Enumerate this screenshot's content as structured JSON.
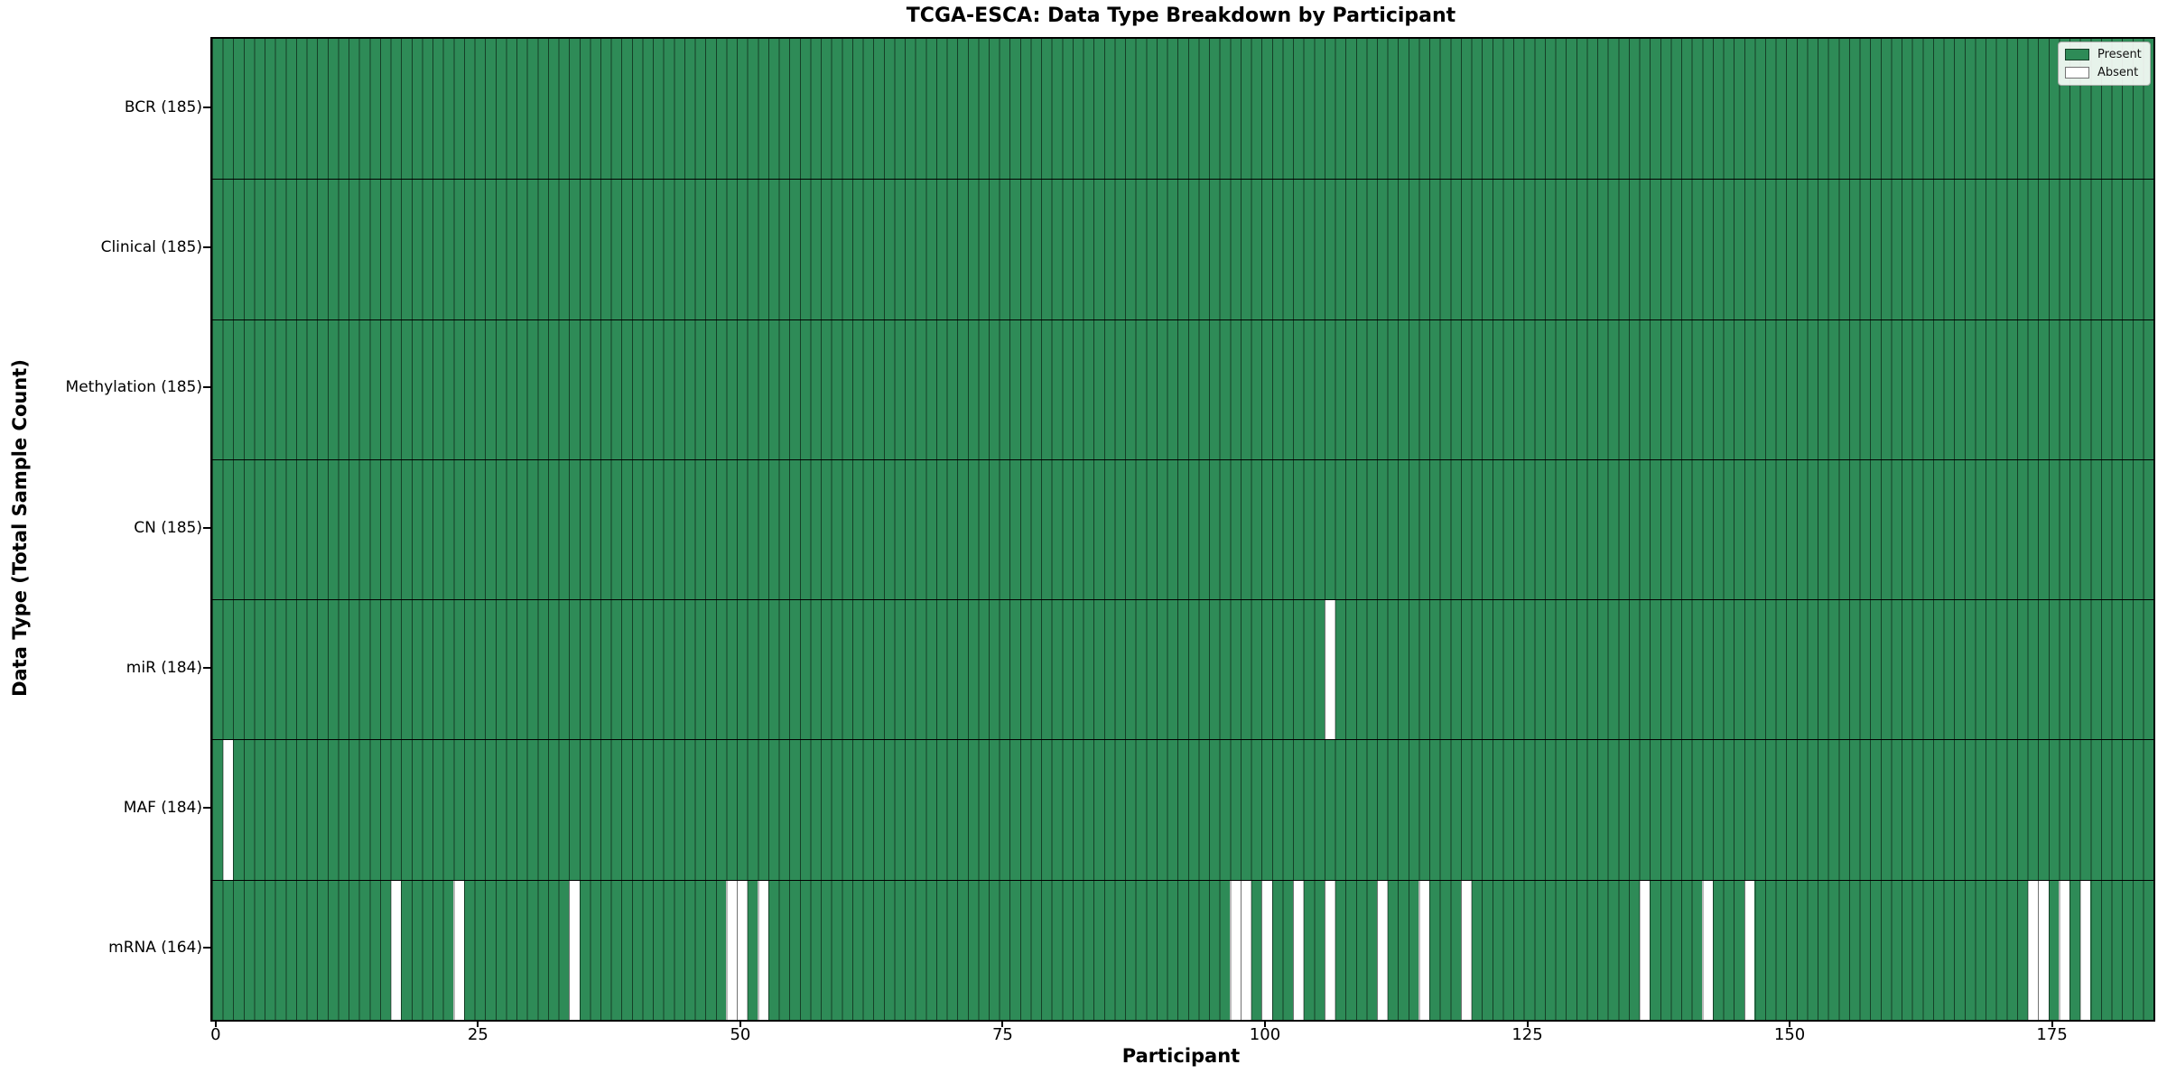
{
  "chart_data": {
    "type": "heatmap",
    "title": "TCGA-ESCA: Data Type Breakdown by Participant",
    "xlabel": "Participant",
    "ylabel": "Data Type (Total Sample Count)",
    "x_ticks": [
      0,
      25,
      50,
      75,
      100,
      125,
      150,
      175
    ],
    "n_participants": 185,
    "value_encoding": "each column is one participant; green cell = data type present, white cell = absent",
    "legend": [
      {
        "label": "Present",
        "color": "#2e8b57"
      },
      {
        "label": "Absent",
        "color": "#ffffff"
      }
    ],
    "colors": {
      "present": "#2e8b57",
      "absent": "#ffffff",
      "cell_edge": "rgba(0,0,0,0.55)",
      "row_separator": "#000000",
      "axis": "#000000"
    },
    "legend_position": "upper right",
    "grid": "per-column vertical edges, per-row black separators",
    "rows": [
      {
        "label": "BCR (185)",
        "data_type": "BCR",
        "total": 185,
        "absent_participants": []
      },
      {
        "label": "Clinical (185)",
        "data_type": "Clinical",
        "total": 185,
        "absent_participants": []
      },
      {
        "label": "Methylation (185)",
        "data_type": "Methylation",
        "total": 185,
        "absent_participants": []
      },
      {
        "label": "CN (185)",
        "data_type": "CN",
        "total": 185,
        "absent_participants": []
      },
      {
        "label": "miR (184)",
        "data_type": "miR",
        "total": 184,
        "absent_participants": [
          106
        ]
      },
      {
        "label": "MAF (184)",
        "data_type": "MAF",
        "total": 184,
        "absent_participants": [
          1
        ]
      },
      {
        "label": "mRNA (164)",
        "data_type": "mRNA",
        "total": 164,
        "absent_participants": [
          17,
          23,
          34,
          49,
          50,
          52,
          97,
          98,
          100,
          103,
          106,
          111,
          115,
          119,
          136,
          142,
          146,
          173,
          174,
          176,
          178
        ]
      }
    ]
  }
}
